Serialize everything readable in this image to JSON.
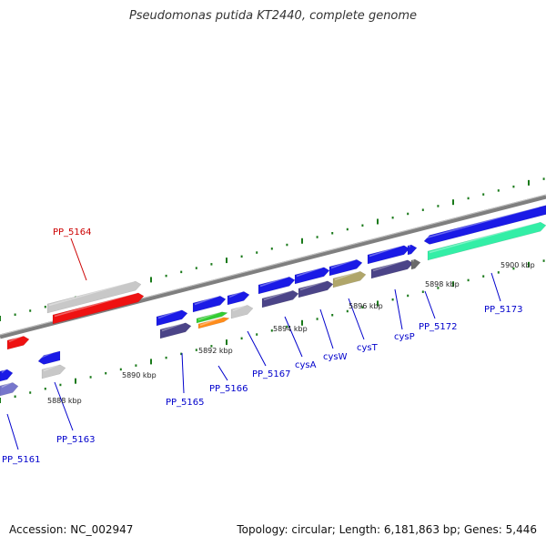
{
  "title": "Pseudomonas putida KT2440, complete genome",
  "footer": {
    "accession": "Accession: NC_002947",
    "summary": "Topology: circular; Length: 6,181,863 bp; Genes: 5,446"
  },
  "colors": {
    "backbone": "#7f7f7f",
    "tick": "#1a7a1a",
    "label_default": "#0000cc",
    "label_highlight": "#cc0000",
    "gene_blue": "#1a1ae6",
    "gene_slate": "#4b4488",
    "gene_gray": "#c8c8c8",
    "gene_red": "#ee1111",
    "gene_green": "#33cc33",
    "gene_orange": "#ff8c1a",
    "gene_khaki": "#b0a66a",
    "gene_aqua": "#33eea6",
    "gene_periwinkle": "#7777cc",
    "gene_darkgray": "#6a6a6a"
  },
  "kbp_marks": [
    "5888 kbp",
    "5890 kbp",
    "5892 kbp",
    "5894 kbp",
    "5896 kbp",
    "5898 kbp",
    "5900 kbp"
  ],
  "gene_labels": [
    {
      "text": "PP_5164",
      "highlight": true
    },
    {
      "text": "PP_5161",
      "highlight": false
    },
    {
      "text": "PP_5163",
      "highlight": false
    },
    {
      "text": "PP_5165",
      "highlight": false
    },
    {
      "text": "PP_5166",
      "highlight": false
    },
    {
      "text": "PP_5167",
      "highlight": false
    },
    {
      "text": "cysA",
      "highlight": false
    },
    {
      "text": "cysW",
      "highlight": false
    },
    {
      "text": "cysT",
      "highlight": false
    },
    {
      "text": "cysP",
      "highlight": false
    },
    {
      "text": "PP_5172",
      "highlight": false
    },
    {
      "text": "PP_5173",
      "highlight": false
    }
  ]
}
